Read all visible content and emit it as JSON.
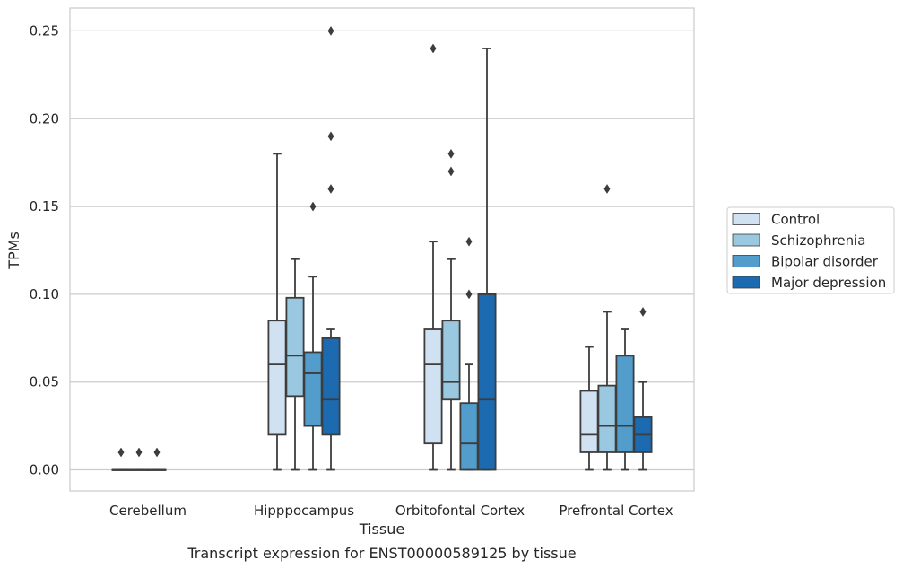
{
  "chart_data": {
    "type": "box",
    "title": "",
    "caption": "Transcript expression for ENST00000589125 by tissue",
    "xlabel": "Tissue",
    "ylabel": "TPMs",
    "ylim": [
      -0.012,
      0.263
    ],
    "yticks": [
      0.0,
      0.05,
      0.1,
      0.15,
      0.2,
      0.25
    ],
    "ytick_labels": [
      "0.00",
      "0.05",
      "0.10",
      "0.15",
      "0.20",
      "0.25"
    ],
    "grid": true,
    "legend_position": "right",
    "categories": [
      "Cerebellum",
      "Hipppocampus",
      "Orbitofontal Cortex",
      "Prefrontal Cortex"
    ],
    "series": [
      {
        "name": "Control",
        "color": "#d0e1f2",
        "boxes": [
          {
            "whislo": 0,
            "q1": 0,
            "med": 0,
            "q3": 0,
            "whishi": 0,
            "fliers": [
              0.01
            ]
          },
          {
            "whislo": 0,
            "q1": 0.02,
            "med": 0.06,
            "q3": 0.085,
            "whishi": 0.18,
            "fliers": []
          },
          {
            "whislo": 0,
            "q1": 0.015,
            "med": 0.06,
            "q3": 0.08,
            "whishi": 0.13,
            "fliers": [
              0.24
            ]
          },
          {
            "whislo": 0,
            "q1": 0.01,
            "med": 0.02,
            "q3": 0.045,
            "whishi": 0.07,
            "fliers": []
          }
        ]
      },
      {
        "name": "Schizophrenia",
        "color": "#9ac8e0",
        "boxes": [
          {
            "whislo": 0,
            "q1": 0,
            "med": 0,
            "q3": 0,
            "whishi": 0,
            "fliers": [
              0.01
            ]
          },
          {
            "whislo": 0,
            "q1": 0.042,
            "med": 0.065,
            "q3": 0.098,
            "whishi": 0.12,
            "fliers": []
          },
          {
            "whislo": 0,
            "q1": 0.04,
            "med": 0.05,
            "q3": 0.085,
            "whishi": 0.12,
            "fliers": [
              0.17,
              0.18
            ]
          },
          {
            "whislo": 0,
            "q1": 0.01,
            "med": 0.025,
            "q3": 0.048,
            "whishi": 0.09,
            "fliers": [
              0.16
            ]
          }
        ]
      },
      {
        "name": "Bipolar disorder",
        "color": "#529dcc",
        "boxes": [
          {
            "whislo": 0,
            "q1": 0,
            "med": 0,
            "q3": 0,
            "whishi": 0,
            "fliers": [
              0.01
            ]
          },
          {
            "whislo": 0,
            "q1": 0.025,
            "med": 0.055,
            "q3": 0.067,
            "whishi": 0.11,
            "fliers": [
              0.15
            ]
          },
          {
            "whislo": 0,
            "q1": 0,
            "med": 0.015,
            "q3": 0.038,
            "whishi": 0.06,
            "fliers": [
              0.1,
              0.13
            ]
          },
          {
            "whislo": 0,
            "q1": 0.01,
            "med": 0.025,
            "q3": 0.065,
            "whishi": 0.08,
            "fliers": []
          }
        ]
      },
      {
        "name": "Major depression",
        "color": "#1c6aaf",
        "boxes": [
          null,
          {
            "whislo": 0,
            "q1": 0.02,
            "med": 0.04,
            "q3": 0.075,
            "whishi": 0.08,
            "fliers": [
              0.16,
              0.19,
              0.25
            ]
          },
          {
            "whislo": 0,
            "q1": 0,
            "med": 0.04,
            "q3": 0.1,
            "whishi": 0.24,
            "fliers": []
          },
          {
            "whislo": 0,
            "q1": 0.01,
            "med": 0.02,
            "q3": 0.03,
            "whishi": 0.05,
            "fliers": [
              0.09
            ]
          }
        ]
      }
    ]
  }
}
